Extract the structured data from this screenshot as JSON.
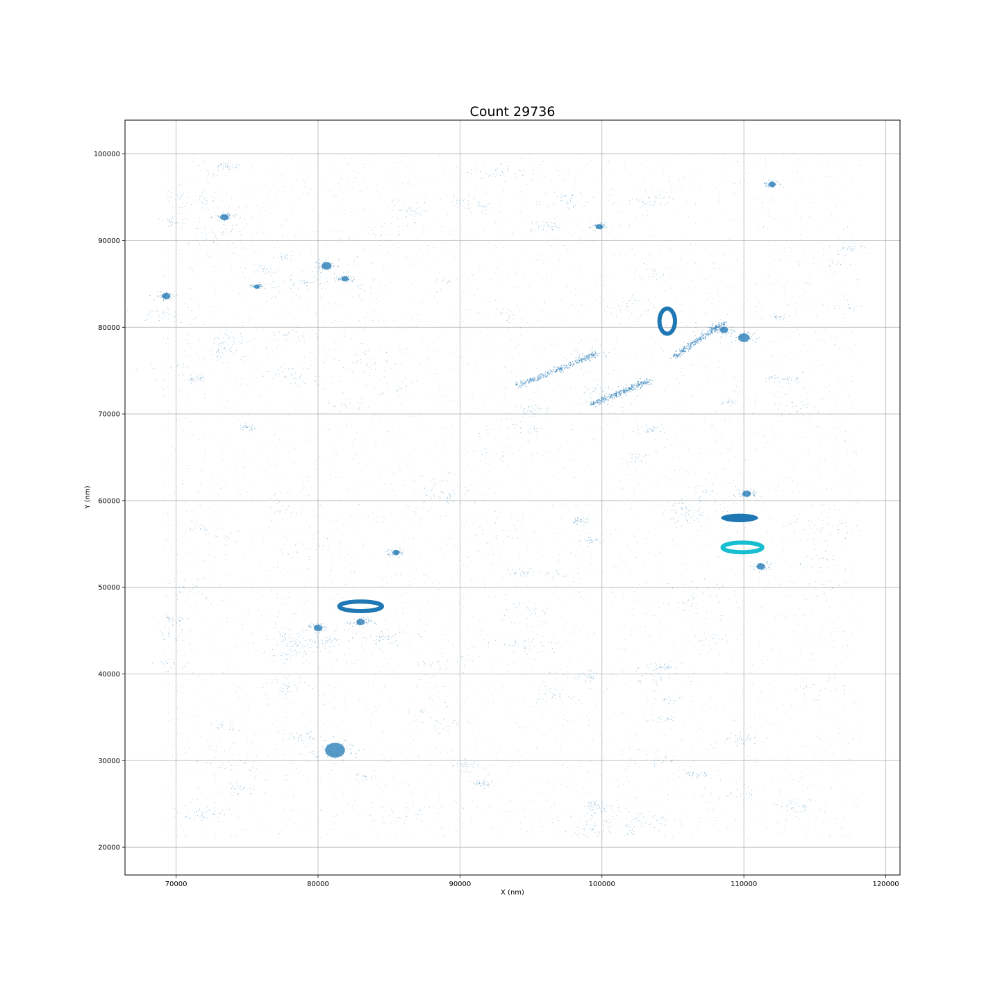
{
  "chart_data": {
    "type": "scatter",
    "title": "Count 29736",
    "xlabel": "X (nm)",
    "ylabel": "Y (nm)",
    "xlim": [
      66400,
      121000
    ],
    "ylim": [
      16800,
      103900
    ],
    "grid": true,
    "x_ticks": [
      70000,
      80000,
      90000,
      100000,
      110000,
      120000
    ],
    "y_ticks": [
      20000,
      30000,
      40000,
      50000,
      60000,
      70000,
      80000,
      90000,
      100000
    ],
    "x_tick_labels": [
      "70000",
      "80000",
      "90000",
      "100000",
      "110000",
      "120000"
    ],
    "y_tick_labels": [
      "20000",
      "30000",
      "40000",
      "50000",
      "60000",
      "70000",
      "80000",
      "90000",
      "100000"
    ],
    "point_color": "#1f77b4",
    "highlight_color": "#17becf",
    "background_extent": {
      "x": [
        69000,
        118200
      ],
      "y": [
        21000,
        99800
      ]
    },
    "background_point_count": 29736,
    "ring_clusters": [
      {
        "cx": 104600,
        "cy": 80700,
        "rx": 550,
        "ry": 1450,
        "ring": true,
        "color": "#1f77b4"
      },
      {
        "cx": 83000,
        "cy": 47800,
        "rx": 1500,
        "ry": 550,
        "ring": true,
        "color": "#1f77b4"
      },
      {
        "cx": 109700,
        "cy": 58000,
        "rx": 1300,
        "ry": 500,
        "ring": false,
        "color": "#1f77b4"
      },
      {
        "cx": 109900,
        "cy": 54600,
        "rx": 1400,
        "ry": 550,
        "ring": true,
        "color": "#17becf"
      }
    ],
    "dense_blobs": [
      {
        "x": 81900,
        "y": 85600,
        "r": 250
      },
      {
        "x": 80600,
        "y": 87100,
        "r": 350
      },
      {
        "x": 110200,
        "y": 60800,
        "r": 300
      },
      {
        "x": 81200,
        "y": 31200,
        "r": 700
      },
      {
        "x": 108600,
        "y": 79700,
        "r": 300
      },
      {
        "x": 112000,
        "y": 96500,
        "r": 250
      },
      {
        "x": 69300,
        "y": 83600,
        "r": 300
      },
      {
        "x": 111200,
        "y": 52400,
        "r": 300
      },
      {
        "x": 85500,
        "y": 54000,
        "r": 250
      },
      {
        "x": 80000,
        "y": 45300,
        "r": 300
      },
      {
        "x": 99800,
        "y": 91600,
        "r": 250
      },
      {
        "x": 75700,
        "y": 84700,
        "r": 200
      },
      {
        "x": 73400,
        "y": 92700,
        "r": 300
      },
      {
        "x": 83000,
        "y": 46000,
        "r": 300
      },
      {
        "x": 110000,
        "y": 78800,
        "r": 400
      }
    ],
    "dense_lines": [
      {
        "x1": 94000,
        "y1": 73200,
        "x2": 99700,
        "y2": 77000
      },
      {
        "x1": 99300,
        "y1": 71100,
        "x2": 103300,
        "y2": 73800
      },
      {
        "x1": 105000,
        "y1": 76500,
        "x2": 108500,
        "y2": 80500
      }
    ]
  }
}
